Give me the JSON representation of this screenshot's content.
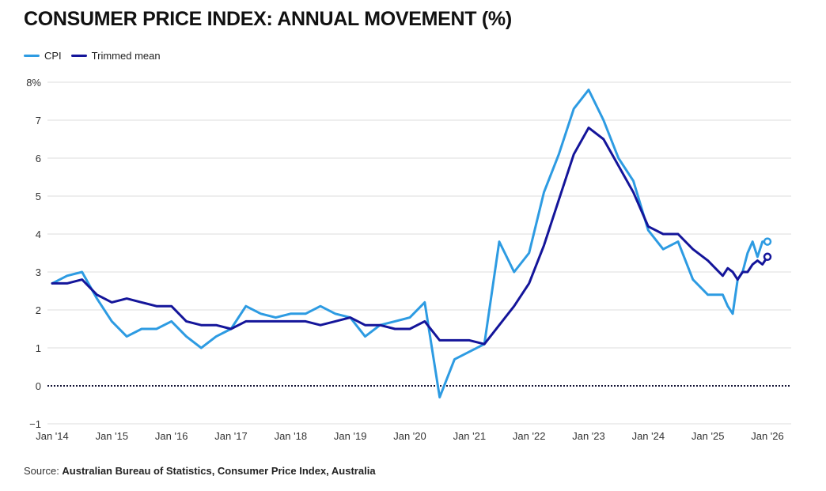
{
  "title": "CONSUMER PRICE INDEX: ANNUAL MOVEMENT (%)",
  "source_prefix": "Source: ",
  "source_text": "Australian Bureau of Statistics, Consumer Price Index, Australia",
  "colors": {
    "cpi": "#2d9be2",
    "trimmed": "#14159a",
    "grid": "#dddddd",
    "zero_line": "#111133"
  },
  "chart_data": {
    "type": "line",
    "title": "CONSUMER PRICE INDEX: ANNUAL MOVEMENT (%)",
    "xlabel": "",
    "ylabel": "",
    "ylim": [
      -1,
      8
    ],
    "y_ticks": [
      -1,
      0,
      1,
      2,
      3,
      4,
      5,
      6,
      7,
      8
    ],
    "y_tick_labels": [
      "−1",
      "0",
      "1",
      "2",
      "3",
      "4",
      "5",
      "6",
      "7",
      "8%"
    ],
    "x_ticks": [
      "Jan '14",
      "Jan '15",
      "Jan '16",
      "Jan '17",
      "Jan '18",
      "Jan '19",
      "Jan '20",
      "Jan '21",
      "Jan '22",
      "Jan '23",
      "Jan '24",
      "Jan '25",
      "Jan '26"
    ],
    "x_tick_labels": [
      "Jan '14",
      "Jan '15",
      "Jan '16",
      "Jan '17",
      "Jan '18",
      "Jan '19",
      "Jan '20",
      "Jan '21",
      "Jan '22",
      "Jan '23",
      "Jan '24",
      "Jan '25",
      "Jan '26"
    ],
    "xlim": [
      "2014-01",
      "2026-01"
    ],
    "reference_line": 0,
    "grid": true,
    "legend_position": "top-left",
    "series": [
      {
        "name": "CPI",
        "color": "#2d9be2",
        "points": [
          [
            "2014-01",
            2.7
          ],
          [
            "2014-04",
            2.9
          ],
          [
            "2014-07",
            3.0
          ],
          [
            "2014-10",
            2.3
          ],
          [
            "2015-01",
            1.7
          ],
          [
            "2015-04",
            1.3
          ],
          [
            "2015-07",
            1.5
          ],
          [
            "2015-10",
            1.5
          ],
          [
            "2016-01",
            1.7
          ],
          [
            "2016-04",
            1.3
          ],
          [
            "2016-07",
            1.0
          ],
          [
            "2016-10",
            1.3
          ],
          [
            "2017-01",
            1.5
          ],
          [
            "2017-04",
            2.1
          ],
          [
            "2017-07",
            1.9
          ],
          [
            "2017-10",
            1.8
          ],
          [
            "2018-01",
            1.9
          ],
          [
            "2018-04",
            1.9
          ],
          [
            "2018-07",
            2.1
          ],
          [
            "2018-10",
            1.9
          ],
          [
            "2019-01",
            1.8
          ],
          [
            "2019-04",
            1.3
          ],
          [
            "2019-07",
            1.6
          ],
          [
            "2019-10",
            1.7
          ],
          [
            "2020-01",
            1.8
          ],
          [
            "2020-04",
            2.2
          ],
          [
            "2020-07",
            -0.3
          ],
          [
            "2020-10",
            0.7
          ],
          [
            "2021-01",
            0.9
          ],
          [
            "2021-04",
            1.1
          ],
          [
            "2021-07",
            3.8
          ],
          [
            "2021-10",
            3.0
          ],
          [
            "2022-01",
            3.5
          ],
          [
            "2022-04",
            5.1
          ],
          [
            "2022-07",
            6.1
          ],
          [
            "2022-10",
            7.3
          ],
          [
            "2023-01",
            7.8
          ],
          [
            "2023-04",
            7.0
          ],
          [
            "2023-07",
            6.0
          ],
          [
            "2023-10",
            5.4
          ],
          [
            "2024-01",
            4.1
          ],
          [
            "2024-04",
            3.6
          ],
          [
            "2024-07",
            3.8
          ],
          [
            "2024-10",
            2.8
          ],
          [
            "2025-01",
            2.4
          ],
          [
            "2025-04",
            2.4
          ],
          [
            "2025-05",
            2.1
          ],
          [
            "2025-06",
            1.9
          ],
          [
            "2025-07",
            2.8
          ],
          [
            "2025-08",
            3.0
          ],
          [
            "2025-09",
            3.5
          ],
          [
            "2025-10",
            3.8
          ],
          [
            "2025-11",
            3.4
          ],
          [
            "2025-12",
            3.8
          ],
          [
            "2026-01",
            3.8
          ]
        ]
      },
      {
        "name": "Trimmed mean",
        "color": "#14159a",
        "points": [
          [
            "2014-01",
            2.7
          ],
          [
            "2014-04",
            2.7
          ],
          [
            "2014-07",
            2.8
          ],
          [
            "2014-10",
            2.4
          ],
          [
            "2015-01",
            2.2
          ],
          [
            "2015-04",
            2.3
          ],
          [
            "2015-07",
            2.2
          ],
          [
            "2015-10",
            2.1
          ],
          [
            "2016-01",
            2.1
          ],
          [
            "2016-04",
            1.7
          ],
          [
            "2016-07",
            1.6
          ],
          [
            "2016-10",
            1.6
          ],
          [
            "2017-01",
            1.5
          ],
          [
            "2017-04",
            1.7
          ],
          [
            "2017-07",
            1.7
          ],
          [
            "2017-10",
            1.7
          ],
          [
            "2018-01",
            1.7
          ],
          [
            "2018-04",
            1.7
          ],
          [
            "2018-07",
            1.6
          ],
          [
            "2018-10",
            1.7
          ],
          [
            "2019-01",
            1.8
          ],
          [
            "2019-04",
            1.6
          ],
          [
            "2019-07",
            1.6
          ],
          [
            "2019-10",
            1.5
          ],
          [
            "2020-01",
            1.5
          ],
          [
            "2020-04",
            1.7
          ],
          [
            "2020-07",
            1.2
          ],
          [
            "2020-10",
            1.2
          ],
          [
            "2021-01",
            1.2
          ],
          [
            "2021-04",
            1.1
          ],
          [
            "2021-07",
            1.6
          ],
          [
            "2021-10",
            2.1
          ],
          [
            "2022-01",
            2.7
          ],
          [
            "2022-04",
            3.7
          ],
          [
            "2022-07",
            4.9
          ],
          [
            "2022-10",
            6.1
          ],
          [
            "2023-01",
            6.8
          ],
          [
            "2023-04",
            6.5
          ],
          [
            "2023-07",
            5.8
          ],
          [
            "2023-10",
            5.1
          ],
          [
            "2024-01",
            4.2
          ],
          [
            "2024-04",
            4.0
          ],
          [
            "2024-07",
            4.0
          ],
          [
            "2024-10",
            3.6
          ],
          [
            "2025-01",
            3.3
          ],
          [
            "2025-04",
            2.9
          ],
          [
            "2025-05",
            3.1
          ],
          [
            "2025-06",
            3.0
          ],
          [
            "2025-07",
            2.8
          ],
          [
            "2025-08",
            3.0
          ],
          [
            "2025-09",
            3.0
          ],
          [
            "2025-10",
            3.2
          ],
          [
            "2025-11",
            3.3
          ],
          [
            "2025-12",
            3.2
          ],
          [
            "2026-01",
            3.4
          ]
        ]
      }
    ]
  }
}
